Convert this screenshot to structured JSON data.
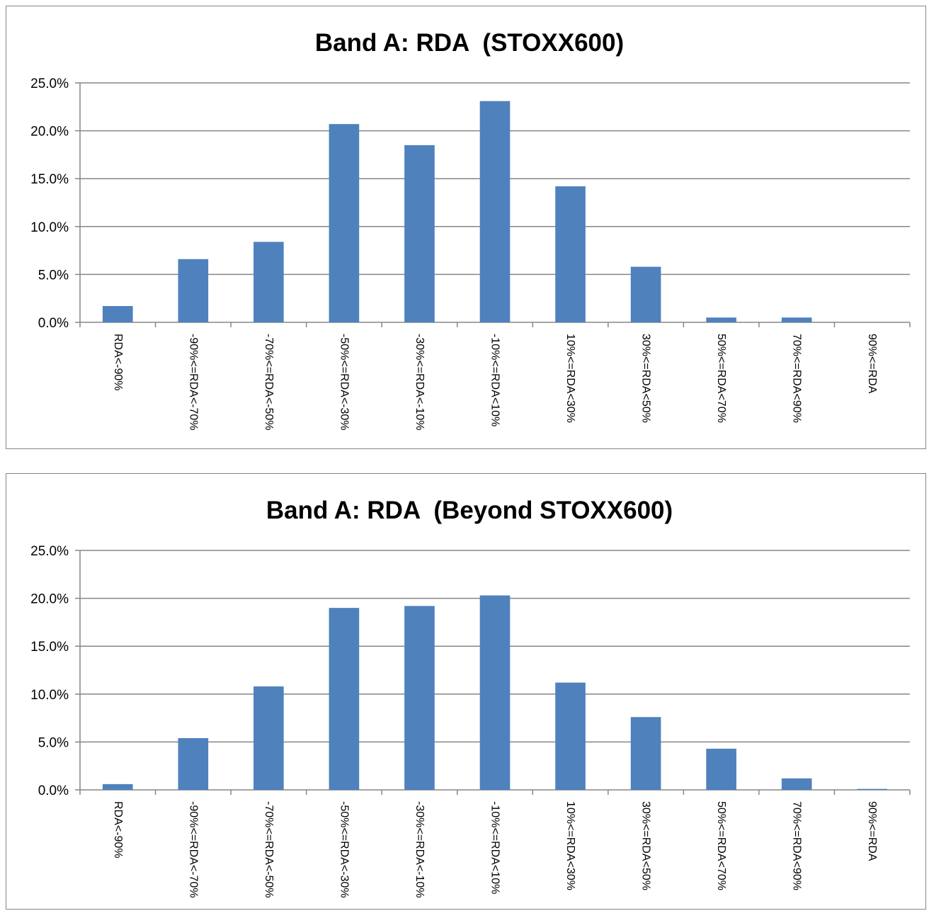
{
  "chart_data": [
    {
      "type": "bar",
      "title": "Band A: RDA  (STOXX600)",
      "xlabel": "",
      "ylabel": "",
      "ylim": [
        0,
        0.25
      ],
      "yticks": [
        0,
        0.05,
        0.1,
        0.15,
        0.2,
        0.25
      ],
      "ytick_labels": [
        "0.0%",
        "5.0%",
        "10.0%",
        "15.0%",
        "20.0%",
        "25.0%"
      ],
      "grid": true,
      "legend": "none",
      "bar_color": "#4f81bd",
      "categories": [
        "RDA<-90%",
        "-90%<=RDA<-70%",
        "-70%<=RDA<-50%",
        "-50%<=RDA<-30%",
        "-30%<=RDA<-10%",
        "-10%<=RDA<10%",
        "10%<=RDA<30%",
        "30%<=RDA<50%",
        "50%<=RDA<70%",
        "70%<=RDA<90%",
        "90%<=RDA"
      ],
      "values": [
        0.017,
        0.066,
        0.084,
        0.207,
        0.185,
        0.231,
        0.142,
        0.058,
        0.005,
        0.005,
        0.0
      ]
    },
    {
      "type": "bar",
      "title": "Band A: RDA  (Beyond STOXX600)",
      "xlabel": "",
      "ylabel": "",
      "ylim": [
        0,
        0.25
      ],
      "yticks": [
        0,
        0.05,
        0.1,
        0.15,
        0.2,
        0.25
      ],
      "ytick_labels": [
        "0.0%",
        "5.0%",
        "10.0%",
        "15.0%",
        "20.0%",
        "25.0%"
      ],
      "grid": true,
      "legend": "none",
      "bar_color": "#4f81bd",
      "categories": [
        "RDA<-90%",
        "-90%<=RDA<-70%",
        "-70%<=RDA<-50%",
        "-50%<=RDA<-30%",
        "-30%<=RDA<-10%",
        "-10%<=RDA<10%",
        "10%<=RDA<30%",
        "30%<=RDA<50%",
        "50%<=RDA<70%",
        "70%<=RDA<90%",
        "90%<=RDA"
      ],
      "values": [
        0.006,
        0.054,
        0.108,
        0.19,
        0.192,
        0.203,
        0.112,
        0.076,
        0.043,
        0.012,
        0.001
      ]
    }
  ]
}
